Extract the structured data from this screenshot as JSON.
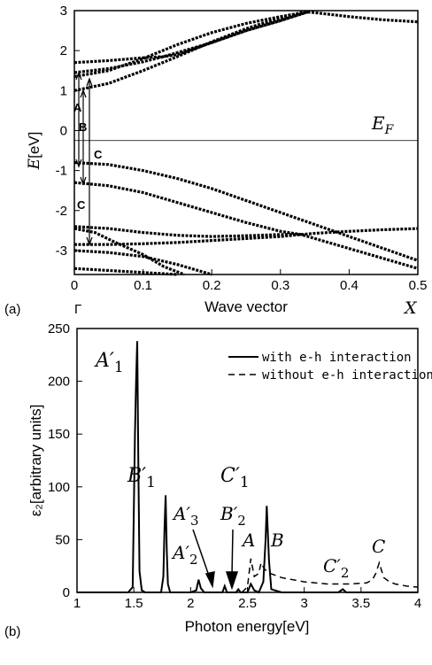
{
  "chart_data": [
    {
      "type": "line",
      "panel_label": "(a)",
      "xlabel": "Wave vector",
      "xlabel_special_left": "Γ",
      "xlabel_special_right": "X",
      "ylabel": "E[eV]",
      "xlim": [
        0,
        0.5
      ],
      "ylim": [
        -3.6,
        3.0
      ],
      "xticks": [
        "0",
        "0.1",
        "0.2",
        "0.3",
        "0.4",
        "0.5"
      ],
      "yticks": [
        "-3",
        "-2",
        "-1",
        "0",
        "1",
        "2",
        "3"
      ],
      "fermi_label": "E_F",
      "fermi_level": -0.25,
      "transition_labels": [
        "A",
        "B",
        "C",
        "C"
      ],
      "series": [
        {
          "x": [
            0,
            0.05,
            0.1,
            0.15,
            0.2,
            0.25,
            0.3,
            0.335,
            0.35,
            0.4,
            0.45,
            0.5
          ],
          "y": [
            1.0,
            1.18,
            1.5,
            1.85,
            2.22,
            2.55,
            2.82,
            2.97,
            2.95,
            2.85,
            2.77,
            2.72
          ]
        },
        {
          "x": [
            0,
            0.05,
            0.1,
            0.15,
            0.2,
            0.25,
            0.3,
            0.34
          ],
          "y": [
            1.35,
            1.5,
            1.8,
            2.15,
            2.45,
            2.68,
            2.85,
            2.97
          ]
        },
        {
          "x": [
            0,
            0.05,
            0.1,
            0.13,
            0.15,
            0.2,
            0.25,
            0.3,
            0.34
          ],
          "y": [
            1.45,
            1.55,
            1.72,
            1.85,
            1.95,
            2.2,
            2.5,
            2.75,
            2.97
          ]
        },
        {
          "x": [
            0,
            0.05,
            0.1,
            0.13,
            0.15,
            0.2,
            0.25,
            0.3,
            0.34
          ],
          "y": [
            1.7,
            1.75,
            1.82,
            1.85,
            1.9,
            2.2,
            2.5,
            2.75,
            2.97
          ]
        },
        {
          "x": [
            0,
            0.05,
            0.1,
            0.15,
            0.2,
            0.25,
            0.3,
            0.35,
            0.4,
            0.45,
            0.5
          ],
          "y": [
            -0.8,
            -0.85,
            -1.0,
            -1.2,
            -1.45,
            -1.75,
            -2.05,
            -2.35,
            -2.65,
            -2.95,
            -3.25
          ]
        },
        {
          "x": [
            0,
            0.05,
            0.1,
            0.15,
            0.2,
            0.25,
            0.3,
            0.33,
            0.35,
            0.4,
            0.45,
            0.5
          ],
          "y": [
            -1.3,
            -1.38,
            -1.55,
            -1.8,
            -2.05,
            -2.3,
            -2.52,
            -2.6,
            -2.7,
            -2.95,
            -3.2,
            -3.45
          ]
        },
        {
          "x": [
            0,
            0.05,
            0.1,
            0.15,
            0.2,
            0.25,
            0.3,
            0.33,
            0.35,
            0.4,
            0.45,
            0.5
          ],
          "y": [
            -2.4,
            -2.45,
            -2.55,
            -2.62,
            -2.65,
            -2.63,
            -2.6,
            -2.6,
            -2.57,
            -2.52,
            -2.48,
            -2.45
          ]
        },
        {
          "x": [
            0,
            0.05,
            0.1,
            0.15,
            0.2,
            0.25,
            0.3,
            0.33
          ],
          "y": [
            -2.85,
            -2.85,
            -2.83,
            -2.8,
            -2.75,
            -2.7,
            -2.65,
            -2.6
          ]
        },
        {
          "x": [
            0,
            0.03,
            0.06,
            0.1,
            0.13,
            0.16
          ],
          "y": [
            -2.45,
            -2.55,
            -2.8,
            -3.1,
            -3.4,
            -3.6
          ]
        },
        {
          "x": [
            0,
            0.05,
            0.1,
            0.15,
            0.2
          ],
          "y": [
            -3.0,
            -3.05,
            -3.15,
            -3.35,
            -3.6
          ]
        },
        {
          "x": [
            0,
            0.05,
            0.1,
            0.15
          ],
          "y": [
            -3.45,
            -3.5,
            -3.55,
            -3.6
          ]
        }
      ]
    },
    {
      "type": "line",
      "panel_label": "(b)",
      "xlabel": "Photon energy[eV]",
      "ylabel": "ε₂[arbitrary units]",
      "xlim": [
        1,
        4
      ],
      "ylim": [
        0,
        250
      ],
      "xticks": [
        "1",
        "1.5",
        "2",
        "2.5",
        "3",
        "3.5",
        "4"
      ],
      "yticks": [
        "0",
        "50",
        "100",
        "150",
        "200",
        "250"
      ],
      "series": [
        {
          "name": "with e-h interaction",
          "x": [
            1.0,
            1.45,
            1.49,
            1.51,
            1.52,
            1.53,
            1.54,
            1.55,
            1.57,
            1.6,
            1.74,
            1.76,
            1.77,
            1.78,
            1.79,
            1.8,
            1.82,
            2.0,
            2.05,
            2.07,
            2.09,
            2.12,
            2.28,
            2.3,
            2.32,
            2.4,
            2.42,
            2.44,
            2.5,
            2.53,
            2.56,
            2.6,
            2.64,
            2.66,
            2.67,
            2.69,
            2.71,
            2.8,
            3.3,
            3.34,
            3.37,
            3.6,
            4.0
          ],
          "y": [
            0,
            0,
            5,
            150,
            200,
            238,
            120,
            20,
            2,
            0,
            0,
            15,
            60,
            92,
            40,
            8,
            0,
            0,
            2,
            12,
            4,
            0,
            0,
            6,
            0,
            0,
            3,
            0,
            0,
            8,
            2,
            0,
            10,
            50,
            82,
            30,
            3,
            0,
            0,
            3,
            0,
            0,
            0
          ]
        },
        {
          "name": "without e-h interaction",
          "x": [
            2.45,
            2.5,
            2.53,
            2.56,
            2.6,
            2.62,
            2.65,
            2.7,
            2.75,
            2.8,
            2.9,
            3.0,
            3.2,
            3.4,
            3.55,
            3.6,
            3.63,
            3.66,
            3.7,
            3.75,
            3.8,
            3.9,
            4.0
          ],
          "y": [
            0,
            5,
            32,
            15,
            18,
            28,
            22,
            18,
            16,
            14,
            12,
            10,
            8,
            8,
            9,
            12,
            18,
            28,
            14,
            10,
            8,
            6,
            5
          ]
        }
      ],
      "annotations": [
        "A′1",
        "B′1",
        "C′1",
        "A′3",
        "B′2",
        "A′2",
        "A",
        "B",
        "C′2",
        "C"
      ]
    }
  ]
}
